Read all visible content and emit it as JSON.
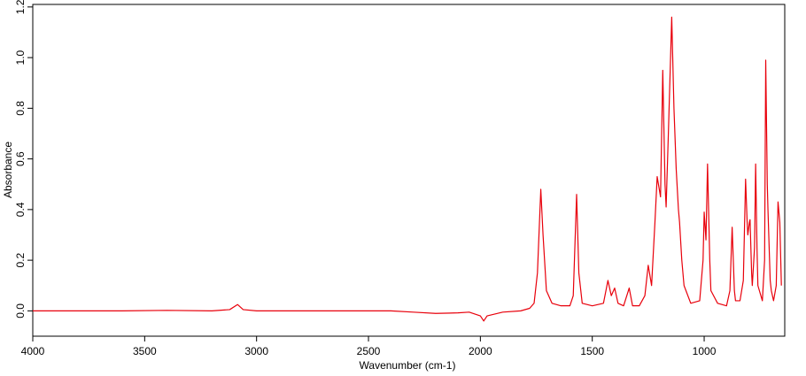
{
  "chart_data": {
    "type": "line",
    "xlabel": "Wavenumber (cm-1)",
    "ylabel": "Absorbance",
    "x": [
      4000,
      3800,
      3600,
      3400,
      3200,
      3120,
      3085,
      3060,
      3000,
      2800,
      2600,
      2400,
      2300,
      2200,
      2100,
      2050,
      2000,
      1985,
      1970,
      1900,
      1820,
      1780,
      1760,
      1745,
      1730,
      1720,
      1705,
      1680,
      1640,
      1600,
      1585,
      1570,
      1560,
      1545,
      1500,
      1450,
      1430,
      1415,
      1400,
      1385,
      1360,
      1335,
      1320,
      1290,
      1265,
      1250,
      1235,
      1220,
      1210,
      1195,
      1185,
      1175,
      1170,
      1160,
      1145,
      1135,
      1125,
      1115,
      1110,
      1100,
      1090,
      1060,
      1020,
      1005,
      1000,
      992,
      985,
      975,
      970,
      940,
      900,
      885,
      875,
      865,
      860,
      840,
      825,
      815,
      808,
      805,
      798,
      795,
      788,
      785,
      775,
      770,
      764,
      760,
      740,
      730,
      725,
      718,
      715,
      705,
      700,
      690,
      678,
      670,
      662,
      655
    ],
    "values": [
      0.0,
      0.0,
      0.0,
      0.002,
      0.0,
      0.005,
      0.025,
      0.005,
      0.0,
      0.0,
      0.0,
      0.0,
      -0.005,
      -0.01,
      -0.008,
      -0.005,
      -0.02,
      -0.04,
      -0.02,
      -0.005,
      0.0,
      0.01,
      0.03,
      0.15,
      0.48,
      0.3,
      0.08,
      0.03,
      0.02,
      0.02,
      0.06,
      0.46,
      0.15,
      0.03,
      0.02,
      0.03,
      0.12,
      0.06,
      0.09,
      0.03,
      0.02,
      0.09,
      0.02,
      0.02,
      0.06,
      0.18,
      0.1,
      0.35,
      0.53,
      0.45,
      0.95,
      0.5,
      0.41,
      0.7,
      1.16,
      0.8,
      0.56,
      0.4,
      0.35,
      0.2,
      0.1,
      0.03,
      0.04,
      0.2,
      0.39,
      0.28,
      0.58,
      0.2,
      0.08,
      0.03,
      0.02,
      0.08,
      0.33,
      0.08,
      0.04,
      0.04,
      0.12,
      0.52,
      0.35,
      0.3,
      0.35,
      0.36,
      0.15,
      0.1,
      0.25,
      0.58,
      0.25,
      0.1,
      0.04,
      0.2,
      0.99,
      0.5,
      0.4,
      0.12,
      0.08,
      0.04,
      0.1,
      0.43,
      0.35,
      0.1
    ],
    "color": "#e8000b",
    "xlim": [
      4000,
      640
    ],
    "ylim": [
      -0.1,
      1.21
    ],
    "xticks": [
      4000,
      3500,
      3000,
      2500,
      2000,
      1500,
      1000
    ],
    "yticks": [
      {
        "value": 0,
        "label": "0.0"
      },
      0.2,
      0.4,
      0.6,
      0.8,
      {
        "value": 1,
        "label": "1.0"
      },
      1.2
    ]
  }
}
